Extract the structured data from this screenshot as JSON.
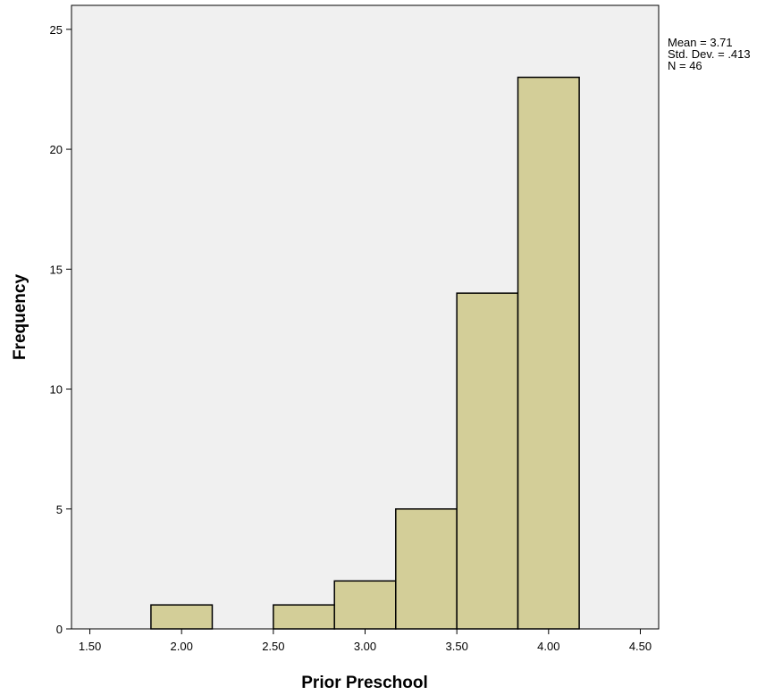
{
  "chart_data": {
    "type": "histogram",
    "xlabel": "Prior Preschool",
    "ylabel": "Frequency",
    "xlim": [
      1.4,
      4.6
    ],
    "ylim": [
      0,
      26
    ],
    "x_ticks": [
      1.5,
      2.0,
      2.5,
      3.0,
      3.5,
      4.0,
      4.5
    ],
    "x_tick_labels": [
      "1.50",
      "2.00",
      "2.50",
      "3.00",
      "3.50",
      "4.00",
      "4.50"
    ],
    "y_ticks": [
      0,
      5,
      10,
      15,
      20,
      25
    ],
    "y_tick_labels": [
      "0",
      "5",
      "10",
      "15",
      "20",
      "25"
    ],
    "bins": [
      {
        "start": 1.833,
        "end": 2.167,
        "count": 1
      },
      {
        "start": 2.167,
        "end": 2.5,
        "count": 0
      },
      {
        "start": 2.5,
        "end": 2.833,
        "count": 1
      },
      {
        "start": 2.833,
        "end": 3.167,
        "count": 2
      },
      {
        "start": 3.167,
        "end": 3.5,
        "count": 5
      },
      {
        "start": 3.5,
        "end": 3.833,
        "count": 14
      },
      {
        "start": 3.833,
        "end": 4.167,
        "count": 23
      }
    ],
    "bar_color": "#d3ce98",
    "plot_background": "#f0f0f0",
    "stats": [
      "Mean = 3.71",
      "Std. Dev. = .413",
      "N = 46"
    ],
    "stats_placement": "top-right, outside plot"
  }
}
